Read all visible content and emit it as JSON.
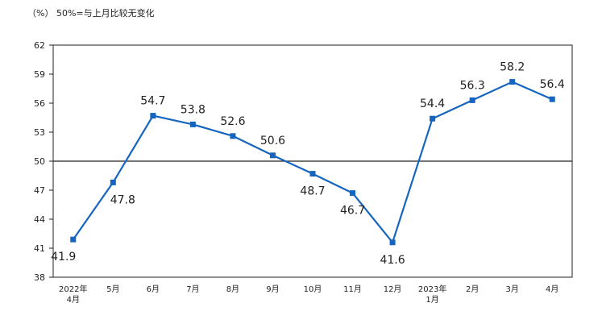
{
  "chart_data": {
    "type": "line",
    "unit_note": "（%）  50%=与上月比较无变化",
    "categories": [
      "2022年\n4月",
      "5月",
      "6月",
      "7月",
      "8月",
      "9月",
      "10月",
      "11月",
      "12月",
      "2023年\n1月",
      "2月",
      "3月",
      "4月"
    ],
    "series": [
      {
        "values": [
          41.9,
          47.8,
          54.7,
          53.8,
          52.6,
          50.6,
          48.7,
          46.7,
          41.6,
          54.4,
          56.3,
          58.2,
          56.4
        ]
      }
    ],
    "data_labels": [
      "41.9",
      "47.8",
      "54.7",
      "53.8",
      "52.6",
      "50.6",
      "48.7",
      "46.7",
      "41.6",
      "54.4",
      "56.3",
      "58.2",
      "56.4"
    ],
    "label_positions": [
      "below",
      "below",
      "above",
      "above",
      "above",
      "above",
      "below",
      "below",
      "below",
      "above",
      "above",
      "above",
      "above"
    ],
    "yticks": [
      38,
      41,
      44,
      47,
      50,
      53,
      56,
      59,
      62
    ],
    "ylim": [
      38,
      62
    ],
    "reference_line": 50,
    "line_color": "#1565c0",
    "grid": false,
    "legend": "none"
  }
}
